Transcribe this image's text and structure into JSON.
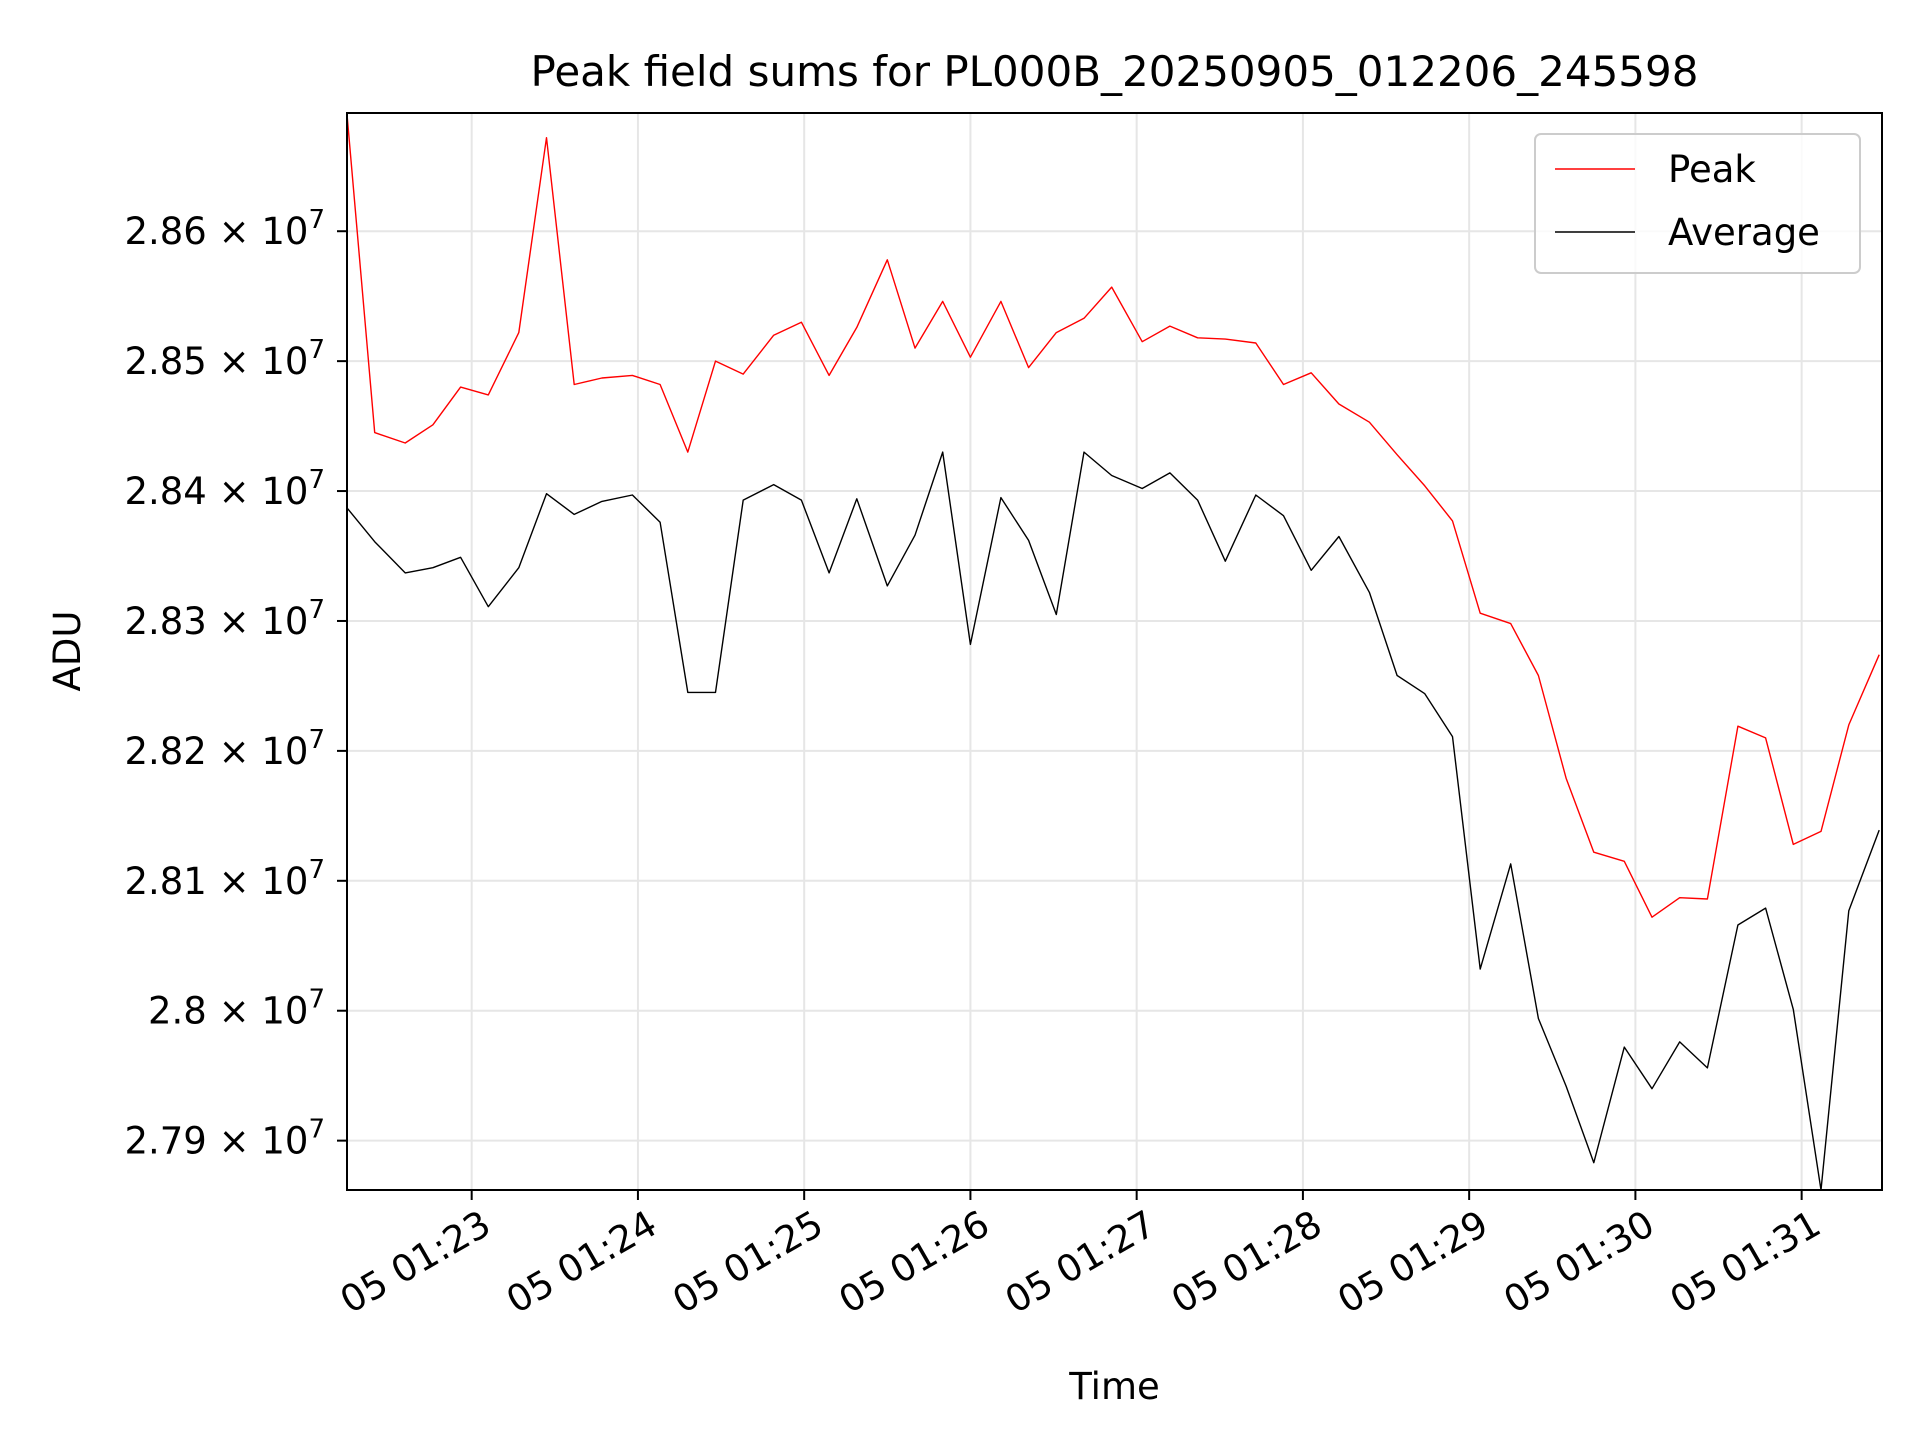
{
  "chart_data": {
    "type": "line",
    "title": "Peak field sums for PL000B_20250905_012206_245598",
    "xlabel": "Time",
    "ylabel": "ADU",
    "xlim": [
      "2025-09-05T01:22:15",
      "2025-09-05T01:31:29"
    ],
    "ylim": [
      27862000,
      28691000
    ],
    "grid": true,
    "legend_position": "upper right",
    "x_ticks": [
      {
        "label": "05 01:23",
        "time": "2025-09-05T01:23:00"
      },
      {
        "label": "05 01:24",
        "time": "2025-09-05T01:24:00"
      },
      {
        "label": "05 01:25",
        "time": "2025-09-05T01:25:00"
      },
      {
        "label": "05 01:26",
        "time": "2025-09-05T01:26:00"
      },
      {
        "label": "05 01:27",
        "time": "2025-09-05T01:27:00"
      },
      {
        "label": "05 01:28",
        "time": "2025-09-05T01:28:00"
      },
      {
        "label": "05 01:29",
        "time": "2025-09-05T01:29:00"
      },
      {
        "label": "05 01:30",
        "time": "2025-09-05T01:30:00"
      },
      {
        "label": "05 01:31",
        "time": "2025-09-05T01:31:00"
      }
    ],
    "y_ticks": [
      {
        "value": 27900000,
        "mantissa": "2.79",
        "exponent": "7"
      },
      {
        "value": 28000000,
        "mantissa": "2.8",
        "exponent": "7"
      },
      {
        "value": 28100000,
        "mantissa": "2.81",
        "exponent": "7"
      },
      {
        "value": 28200000,
        "mantissa": "2.82",
        "exponent": "7"
      },
      {
        "value": 28300000,
        "mantissa": "2.83",
        "exponent": "7"
      },
      {
        "value": 28400000,
        "mantissa": "2.84",
        "exponent": "7"
      },
      {
        "value": 28500000,
        "mantissa": "2.85",
        "exponent": "7"
      },
      {
        "value": 28600000,
        "mantissa": "2.86",
        "exponent": "7"
      }
    ],
    "x": [
      "2025-09-05T01:22:15",
      "2025-09-05T01:22:25",
      "2025-09-05T01:22:36",
      "2025-09-05T01:22:46",
      "2025-09-05T01:22:56",
      "2025-09-05T01:23:06",
      "2025-09-05T01:23:17",
      "2025-09-05T01:23:27",
      "2025-09-05T01:23:37",
      "2025-09-05T01:23:47",
      "2025-09-05T01:23:58",
      "2025-09-05T01:24:08",
      "2025-09-05T01:24:18",
      "2025-09-05T01:24:28",
      "2025-09-05T01:24:38",
      "2025-09-05T01:24:49",
      "2025-09-05T01:24:59",
      "2025-09-05T01:25:09",
      "2025-09-05T01:25:19",
      "2025-09-05T01:25:30",
      "2025-09-05T01:25:40",
      "2025-09-05T01:25:50",
      "2025-09-05T01:26:00",
      "2025-09-05T01:26:11",
      "2025-09-05T01:26:21",
      "2025-09-05T01:26:31",
      "2025-09-05T01:26:41",
      "2025-09-05T01:26:51",
      "2025-09-05T01:27:02",
      "2025-09-05T01:27:12",
      "2025-09-05T01:27:22",
      "2025-09-05T01:27:32",
      "2025-09-05T01:27:43",
      "2025-09-05T01:27:53",
      "2025-09-05T01:28:03",
      "2025-09-05T01:28:13",
      "2025-09-05T01:28:24",
      "2025-09-05T01:28:34",
      "2025-09-05T01:28:44",
      "2025-09-05T01:28:54",
      "2025-09-05T01:29:04",
      "2025-09-05T01:29:15",
      "2025-09-05T01:29:25",
      "2025-09-05T01:29:35",
      "2025-09-05T01:29:45",
      "2025-09-05T01:29:56",
      "2025-09-05T01:30:06",
      "2025-09-05T01:30:16",
      "2025-09-05T01:30:26",
      "2025-09-05T01:30:37",
      "2025-09-05T01:30:47",
      "2025-09-05T01:30:57",
      "2025-09-05T01:31:07",
      "2025-09-05T01:31:17",
      "2025-09-05T01:31:28"
    ],
    "series": [
      {
        "name": "Peak",
        "color": "#ff0000",
        "values": [
          28690000,
          28445000,
          28437000,
          28451000,
          28480000,
          28474000,
          28522000,
          28672000,
          28482000,
          28487000,
          28489000,
          28482000,
          28430000,
          28500000,
          28490000,
          28520000,
          28530000,
          28489000,
          28526000,
          28578000,
          28510000,
          28546000,
          28503000,
          28546000,
          28495000,
          28522000,
          28533000,
          28557000,
          28515000,
          28527000,
          28518000,
          28517000,
          28514000,
          28482000,
          28491000,
          28467000,
          28453000,
          28428000,
          28404000,
          28377000,
          28306000,
          28298000,
          28258000,
          28179000,
          28122000,
          28115000,
          28072000,
          28087000,
          28086000,
          28219000,
          28210000,
          28128000,
          28138000,
          28220000,
          28274000
        ]
      },
      {
        "name": "Average",
        "color": "#000000",
        "values": [
          28387000,
          28361000,
          28337000,
          28341000,
          28349000,
          28311000,
          28341000,
          28398000,
          28382000,
          28392000,
          28397000,
          28376000,
          28245000,
          28245000,
          28393000,
          28405000,
          28393000,
          28337000,
          28394000,
          28327000,
          28366000,
          28430000,
          28282000,
          28395000,
          28362000,
          28305000,
          28430000,
          28412000,
          28402000,
          28414000,
          28393000,
          28346000,
          28397000,
          28381000,
          28339000,
          28365000,
          28322000,
          28258000,
          28244000,
          28211000,
          28032000,
          28113000,
          27994000,
          27942000,
          27883000,
          27972000,
          27940000,
          27976000,
          27956000,
          28066000,
          28079000,
          28001000,
          27862000,
          28077000,
          28139000
        ]
      }
    ]
  }
}
